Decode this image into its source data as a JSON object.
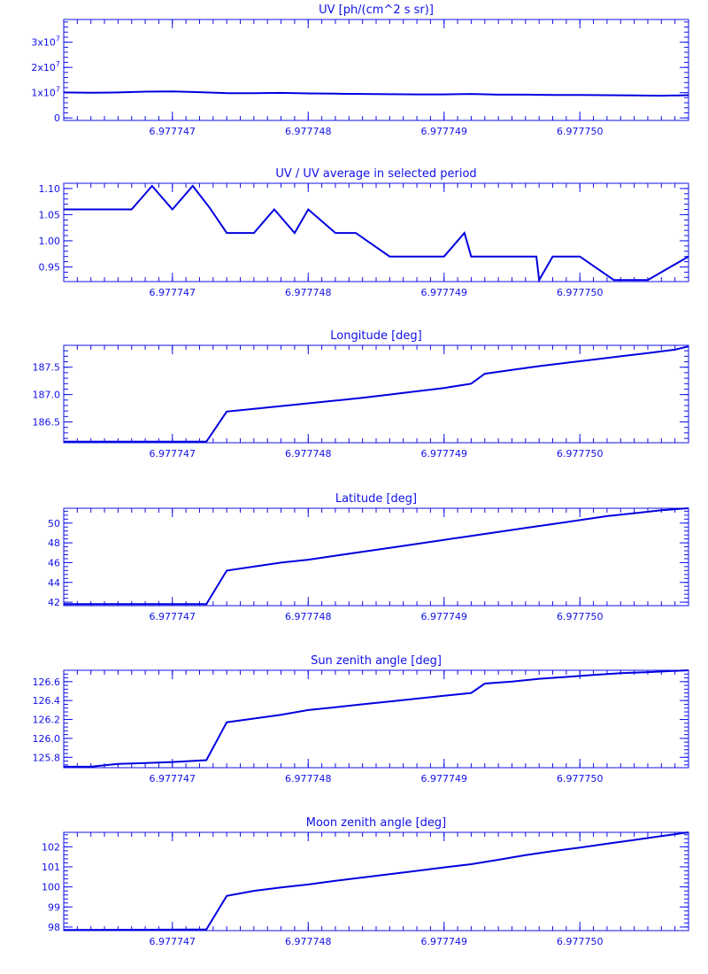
{
  "chart_data": [
    {
      "type": "line",
      "title": "UV [ph/(cm^2 s sr)]",
      "xlim": [
        6.9777462,
        6.9777508
      ],
      "ylim": [
        -1000000,
        39000000
      ],
      "x_ticks": [
        "6.977747",
        "6.977748",
        "6.977749",
        "6.977750"
      ],
      "x_tick_values": [
        6.977747,
        6.977748,
        6.977749,
        6.97775
      ],
      "y_ticks": [
        {
          "value": 0,
          "base": "0",
          "exp": ""
        },
        {
          "value": 10000000,
          "base": "1x10",
          "exp": "7"
        },
        {
          "value": 20000000,
          "base": "2x10",
          "exp": "7"
        },
        {
          "value": 30000000,
          "base": "3x10",
          "exp": "7"
        }
      ],
      "x": [
        6.9777462,
        6.9777464,
        6.9777466,
        6.9777468,
        6.977747,
        6.9777472,
        6.9777474,
        6.9777476,
        6.9777478,
        6.977748,
        6.9777482,
        6.9777484,
        6.9777486,
        6.9777488,
        6.977749,
        6.9777492,
        6.9777494,
        6.9777496,
        6.9777498,
        6.97775,
        6.9777502,
        6.9777504,
        6.9777506,
        6.9777508
      ],
      "y": [
        10100000,
        10000000,
        10100000,
        10400000,
        10500000,
        10200000,
        9800000,
        9800000,
        9900000,
        9700000,
        9600000,
        9500000,
        9400000,
        9300000,
        9300000,
        9500000,
        9200000,
        9200000,
        9100000,
        9100000,
        9000000,
        8900000,
        8800000,
        9000000
      ]
    },
    {
      "type": "line",
      "title": "UV / UV average in selected period",
      "xlim": [
        6.9777462,
        6.9777508
      ],
      "ylim": [
        0.922,
        1.11
      ],
      "x_ticks": [
        "6.977747",
        "6.977748",
        "6.977749",
        "6.977750"
      ],
      "x_tick_values": [
        6.977747,
        6.977748,
        6.977749,
        6.97775
      ],
      "y_ticks": [
        {
          "value": 0.95,
          "base": "0.95",
          "exp": ""
        },
        {
          "value": 1.0,
          "base": "1.00",
          "exp": ""
        },
        {
          "value": 1.05,
          "base": "1.05",
          "exp": ""
        },
        {
          "value": 1.1,
          "base": "1.10",
          "exp": ""
        }
      ],
      "x": [
        6.9777462,
        6.9777467,
        6.97774685,
        6.977747,
        6.97774715,
        6.977747275,
        6.9777474,
        6.9777476,
        6.97774775,
        6.9777479,
        6.977748,
        6.9777482,
        6.97774835,
        6.9777486,
        6.977749,
        6.97774915,
        6.9777492,
        6.9777494,
        6.97774968,
        6.9777497,
        6.9777498,
        6.97775,
        6.97775025,
        6.9777505,
        6.9777508
      ],
      "y": [
        1.06,
        1.06,
        1.105,
        1.06,
        1.105,
        1.063,
        1.015,
        1.015,
        1.06,
        1.015,
        1.06,
        1.015,
        1.015,
        0.97,
        0.97,
        1.015,
        0.97,
        0.97,
        0.97,
        0.925,
        0.97,
        0.97,
        0.925,
        0.925,
        0.97
      ]
    },
    {
      "type": "line",
      "title": "Longitude [deg]",
      "xlim": [
        6.9777462,
        6.9777508
      ],
      "ylim": [
        186.12,
        187.9
      ],
      "x_ticks": [
        "6.977747",
        "6.977748",
        "6.977749",
        "6.977750"
      ],
      "x_tick_values": [
        6.977747,
        6.977748,
        6.977749,
        6.97775
      ],
      "y_ticks": [
        {
          "value": 186.5,
          "base": "186.5",
          "exp": ""
        },
        {
          "value": 187.0,
          "base": "187.0",
          "exp": ""
        },
        {
          "value": 187.5,
          "base": "187.5",
          "exp": ""
        }
      ],
      "x": [
        6.9777462,
        6.97774725,
        6.9777474,
        6.9777476,
        6.9777478,
        6.977748,
        6.9777482,
        6.9777484,
        6.9777486,
        6.9777488,
        6.977749,
        6.9777492,
        6.9777493,
        6.9777495,
        6.9777497,
        6.9777499,
        6.9777501,
        6.9777503,
        6.9777505,
        6.9777507,
        6.9777508
      ],
      "y": [
        186.14,
        186.14,
        186.69,
        186.74,
        186.79,
        186.84,
        186.89,
        186.94,
        187.0,
        187.06,
        187.12,
        187.2,
        187.38,
        187.45,
        187.52,
        187.58,
        187.64,
        187.7,
        187.76,
        187.82,
        187.88
      ]
    },
    {
      "type": "line",
      "title": "Latitude [deg]",
      "xlim": [
        6.9777462,
        6.9777508
      ],
      "ylim": [
        41.65,
        51.5
      ],
      "x_ticks": [
        "6.977747",
        "6.977748",
        "6.977749",
        "6.977750"
      ],
      "x_tick_values": [
        6.977747,
        6.977748,
        6.977749,
        6.97775
      ],
      "y_ticks": [
        {
          "value": 42,
          "base": "42",
          "exp": ""
        },
        {
          "value": 44,
          "base": "44",
          "exp": ""
        },
        {
          "value": 46,
          "base": "46",
          "exp": ""
        },
        {
          "value": 48,
          "base": "48",
          "exp": ""
        },
        {
          "value": 50,
          "base": "50",
          "exp": ""
        }
      ],
      "x": [
        6.9777462,
        6.97774725,
        6.9777474,
        6.9777476,
        6.9777478,
        6.977748,
        6.9777482,
        6.9777484,
        6.9777486,
        6.9777488,
        6.977749,
        6.9777492,
        6.9777494,
        6.9777496,
        6.9777498,
        6.97775,
        6.9777502,
        6.9777504,
        6.9777506,
        6.9777508
      ],
      "y": [
        41.8,
        41.8,
        45.2,
        45.6,
        46.0,
        46.3,
        46.7,
        47.1,
        47.5,
        47.9,
        48.3,
        48.7,
        49.1,
        49.5,
        49.9,
        50.3,
        50.7,
        51.0,
        51.3,
        51.5
      ]
    },
    {
      "type": "line",
      "title": "Sun zenith angle [deg]",
      "xlim": [
        6.9777462,
        6.9777508
      ],
      "ylim": [
        125.69,
        126.72
      ],
      "x_ticks": [
        "6.977747",
        "6.977748",
        "6.977749",
        "6.977750"
      ],
      "x_tick_values": [
        6.977747,
        6.977748,
        6.977749,
        6.97775
      ],
      "y_ticks": [
        {
          "value": 125.8,
          "base": "125.8",
          "exp": ""
        },
        {
          "value": 126.0,
          "base": "126.0",
          "exp": ""
        },
        {
          "value": 126.2,
          "base": "126.2",
          "exp": ""
        },
        {
          "value": 126.4,
          "base": "126.4",
          "exp": ""
        },
        {
          "value": 126.6,
          "base": "126.6",
          "exp": ""
        }
      ],
      "x": [
        6.9777462,
        6.9777464,
        6.9777466,
        6.9777468,
        6.977747,
        6.97774725,
        6.9777474,
        6.9777476,
        6.9777478,
        6.977748,
        6.9777482,
        6.9777484,
        6.9777486,
        6.9777488,
        6.977749,
        6.9777492,
        6.9777493,
        6.9777495,
        6.9777497,
        6.9777499,
        6.9777501,
        6.9777503,
        6.9777505,
        6.9777508
      ],
      "y": [
        125.7,
        125.7,
        125.73,
        125.74,
        125.75,
        125.77,
        126.17,
        126.21,
        126.25,
        126.3,
        126.33,
        126.36,
        126.39,
        126.42,
        126.45,
        126.48,
        126.58,
        126.6,
        126.63,
        126.65,
        126.67,
        126.69,
        126.7,
        126.72
      ]
    },
    {
      "type": "line",
      "title": "Moon zenith angle [deg]",
      "xlim": [
        6.9777462,
        6.9777508
      ],
      "ylim": [
        97.82,
        102.72
      ],
      "x_ticks": [
        "6.977747",
        "6.977748",
        "6.977749",
        "6.977750"
      ],
      "x_tick_values": [
        6.977747,
        6.977748,
        6.977749,
        6.97775
      ],
      "y_ticks": [
        {
          "value": 98,
          "base": "98",
          "exp": ""
        },
        {
          "value": 99,
          "base": "99",
          "exp": ""
        },
        {
          "value": 100,
          "base": "100",
          "exp": ""
        },
        {
          "value": 101,
          "base": "101",
          "exp": ""
        },
        {
          "value": 102,
          "base": "102",
          "exp": ""
        }
      ],
      "x": [
        6.9777462,
        6.9777466,
        6.977747,
        6.97774725,
        6.9777474,
        6.9777476,
        6.9777478,
        6.977748,
        6.9777482,
        6.9777484,
        6.9777486,
        6.9777488,
        6.977749,
        6.9777492,
        6.9777494,
        6.9777496,
        6.9777498,
        6.97775,
        6.9777502,
        6.9777504,
        6.9777506,
        6.9777508
      ],
      "y": [
        97.85,
        97.86,
        97.87,
        97.88,
        99.55,
        99.8,
        99.97,
        100.12,
        100.3,
        100.47,
        100.63,
        100.8,
        100.97,
        101.13,
        101.35,
        101.58,
        101.78,
        101.96,
        102.15,
        102.34,
        102.53,
        102.72
      ]
    }
  ]
}
